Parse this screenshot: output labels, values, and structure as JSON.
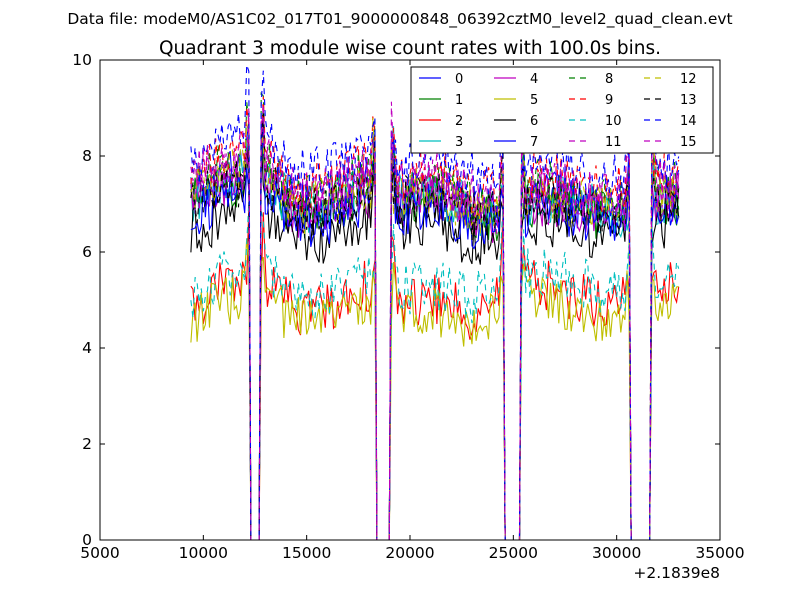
{
  "figure": {
    "suptitle": "Data file: modeM0/AS1C02_017T01_9000000848_06392cztM0_level2_quad_clean.evt",
    "title": "Quadrant 3 module wise count rates with 100.0s bins.",
    "offset_label": "+2.1839e8"
  },
  "chart_data": {
    "type": "line",
    "title": "Quadrant 3 module wise count rates with 100.0s bins.",
    "xlabel": "",
    "ylabel": "",
    "xlim": [
      5000,
      35000
    ],
    "ylim": [
      0,
      10
    ],
    "x_offset": "+2.1839e8",
    "xticks": [
      "5000",
      "10000",
      "15000",
      "20000",
      "25000",
      "30000",
      "35000"
    ],
    "yticks": [
      "0",
      "2",
      "4",
      "6",
      "8",
      "10"
    ],
    "grid": false,
    "legend_position": "top-right",
    "x_range_data": [
      9400,
      33000
    ],
    "gaps": [
      [
        12300,
        12700
      ],
      [
        18400,
        19000
      ],
      [
        24600,
        25300
      ],
      [
        30700,
        31600
      ]
    ],
    "series": [
      {
        "name": "0",
        "color": "#0000ff",
        "dash": "solid",
        "profile": [
          7.2,
          7.6,
          7.8,
          6.9,
          7.0,
          7.4,
          7.1,
          7.3,
          6.9,
          6.8,
          7.2,
          7.0,
          6.8,
          7.0,
          7.2
        ],
        "level": 7.0
      },
      {
        "name": "1",
        "color": "#008000",
        "dash": "solid",
        "profile": [
          7.0,
          7.4,
          7.6,
          6.8,
          6.9,
          7.3,
          7.0,
          7.2,
          6.8,
          6.7,
          7.1,
          6.9,
          6.7,
          6.9,
          7.1
        ],
        "level": 6.9
      },
      {
        "name": "2",
        "color": "#ff0000",
        "dash": "solid",
        "profile": [
          4.9,
          5.3,
          5.5,
          4.8,
          4.9,
          5.3,
          5.0,
          5.0,
          4.7,
          5.2,
          5.4,
          5.1,
          4.9,
          5.1,
          5.3
        ],
        "level": 5.1
      },
      {
        "name": "3",
        "color": "#00bfbf",
        "dash": "solid",
        "profile": [
          7.1,
          7.5,
          7.7,
          6.9,
          7.0,
          7.4,
          7.1,
          7.3,
          6.9,
          6.8,
          7.2,
          7.0,
          6.8,
          7.0,
          7.2
        ],
        "level": 7.0
      },
      {
        "name": "4",
        "color": "#bf00bf",
        "dash": "solid",
        "profile": [
          7.0,
          7.5,
          7.6,
          6.8,
          6.9,
          7.3,
          7.0,
          7.2,
          6.8,
          6.7,
          7.1,
          6.9,
          6.7,
          6.9,
          7.1
        ],
        "level": 6.9
      },
      {
        "name": "5",
        "color": "#bfbf00",
        "dash": "solid",
        "profile": [
          4.6,
          5.0,
          5.2,
          4.5,
          4.6,
          5.0,
          4.8,
          4.8,
          4.5,
          4.9,
          5.1,
          4.8,
          4.6,
          4.8,
          5.0
        ],
        "level": 4.8
      },
      {
        "name": "6",
        "color": "#000000",
        "dash": "solid",
        "profile": [
          6.4,
          6.8,
          6.9,
          6.2,
          6.3,
          6.7,
          6.5,
          6.6,
          6.2,
          6.4,
          6.7,
          6.5,
          6.3,
          6.5,
          6.7
        ],
        "level": 6.5
      },
      {
        "name": "7",
        "color": "#0000ff",
        "dash": "solid",
        "profile": [
          6.8,
          7.2,
          7.4,
          6.6,
          6.7,
          7.1,
          6.8,
          7.0,
          6.6,
          6.6,
          7.0,
          6.8,
          6.6,
          6.8,
          7.0
        ],
        "level": 6.8
      },
      {
        "name": "8",
        "color": "#008000",
        "dash": "dashed",
        "profile": [
          7.4,
          7.8,
          8.0,
          7.1,
          7.2,
          7.6,
          7.3,
          7.5,
          7.1,
          7.0,
          7.4,
          7.2,
          7.0,
          7.2,
          7.4
        ],
        "level": 7.3
      },
      {
        "name": "9",
        "color": "#ff0000",
        "dash": "dashed",
        "profile": [
          7.6,
          8.0,
          8.2,
          7.3,
          7.4,
          7.8,
          7.5,
          7.7,
          7.3,
          7.2,
          7.6,
          7.4,
          7.2,
          7.4,
          7.6
        ],
        "level": 7.5
      },
      {
        "name": "10",
        "color": "#00bfbf",
        "dash": "dashed",
        "profile": [
          5.1,
          5.5,
          5.8,
          5.0,
          5.1,
          5.5,
          5.2,
          5.3,
          5.0,
          5.4,
          5.6,
          5.4,
          5.1,
          5.4,
          5.6
        ],
        "level": 5.3
      },
      {
        "name": "11",
        "color": "#bf00bf",
        "dash": "dashed",
        "profile": [
          7.3,
          7.7,
          7.9,
          7.0,
          7.1,
          7.5,
          7.2,
          7.4,
          7.0,
          6.9,
          7.3,
          7.1,
          6.9,
          7.1,
          7.3
        ],
        "level": 7.2
      },
      {
        "name": "12",
        "color": "#bfbf00",
        "dash": "dashed",
        "profile": [
          7.2,
          7.6,
          7.8,
          6.9,
          7.0,
          7.4,
          7.1,
          7.3,
          6.9,
          6.8,
          7.2,
          7.0,
          6.8,
          7.0,
          7.2
        ],
        "level": 7.1
      },
      {
        "name": "13",
        "color": "#000000",
        "dash": "dashed",
        "profile": [
          7.0,
          7.4,
          7.6,
          6.8,
          6.9,
          7.3,
          7.0,
          7.2,
          6.8,
          6.7,
          7.1,
          6.9,
          6.7,
          6.9,
          7.1
        ],
        "level": 6.9
      },
      {
        "name": "14",
        "color": "#0000ff",
        "dash": "dashed",
        "profile": [
          8.0,
          8.4,
          8.6,
          7.6,
          7.7,
          8.1,
          7.8,
          8.0,
          7.6,
          7.5,
          7.9,
          7.7,
          7.5,
          7.7,
          7.9
        ],
        "level": 7.9
      },
      {
        "name": "15",
        "color": "#bf00bf",
        "dash": "dashed",
        "profile": [
          7.5,
          7.9,
          8.1,
          7.2,
          7.3,
          7.7,
          7.4,
          7.6,
          7.2,
          7.1,
          7.5,
          7.3,
          7.1,
          7.3,
          7.5
        ],
        "level": 7.4
      }
    ]
  }
}
